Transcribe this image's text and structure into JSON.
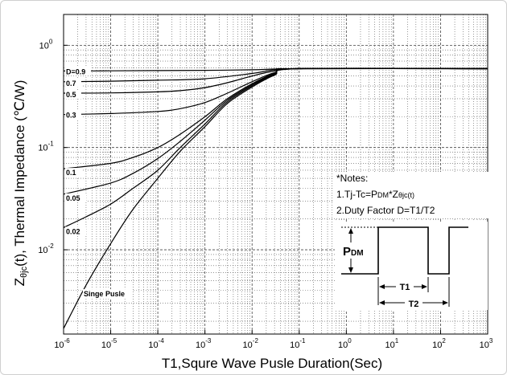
{
  "chart_data": {
    "type": "line",
    "xlabel": "T1,Squre Wave Pusle Duration(Sec)",
    "ylabel_parts": [
      "Z",
      "θjc",
      "(t), Thermal  Impedance (℃/W)"
    ],
    "x_scale": "log",
    "y_scale": "log",
    "xlim": [
      1e-06,
      1000
    ],
    "ylim": [
      0.0015,
      2
    ],
    "x_ticks": [
      {
        "v": 1e-06,
        "base": "10",
        "exp": "-6"
      },
      {
        "v": 1e-05,
        "base": "10",
        "exp": "-5"
      },
      {
        "v": 0.0001,
        "base": "10",
        "exp": "-4"
      },
      {
        "v": 0.001,
        "base": "10",
        "exp": "-3"
      },
      {
        "v": 0.01,
        "base": "10",
        "exp": "-2"
      },
      {
        "v": 0.1,
        "base": "10",
        "exp": "-1"
      },
      {
        "v": 1,
        "base": "10",
        "exp": "0"
      },
      {
        "v": 10,
        "base": "10",
        "exp": "1"
      },
      {
        "v": 100,
        "base": "10",
        "exp": "2"
      },
      {
        "v": 1000,
        "base": "10",
        "exp": "3"
      }
    ],
    "y_ticks": [
      {
        "v": 1,
        "base": "10",
        "exp": "0"
      },
      {
        "v": 0.1,
        "base": "10",
        "exp": "-1"
      },
      {
        "v": 0.01,
        "base": "10",
        "exp": "-2"
      }
    ],
    "grid": true,
    "series": [
      {
        "name": "D=0.9",
        "x": [
          1e-06,
          1e-05,
          0.0001,
          0.001,
          0.01,
          0.03,
          0.1,
          1000
        ],
        "y": [
          0.56,
          0.562,
          0.565,
          0.568,
          0.575,
          0.585,
          0.59,
          0.59
        ]
      },
      {
        "name": "0.7",
        "x": [
          1e-06,
          1e-05,
          0.0001,
          0.001,
          0.01,
          0.03,
          0.1,
          1000
        ],
        "y": [
          0.44,
          0.445,
          0.455,
          0.47,
          0.53,
          0.575,
          0.59,
          0.59
        ]
      },
      {
        "name": "0.5",
        "x": [
          1e-06,
          1e-05,
          0.0001,
          0.0003,
          0.001,
          0.003,
          0.01,
          0.03,
          0.1,
          1000
        ],
        "y": [
          0.34,
          0.342,
          0.35,
          0.36,
          0.385,
          0.43,
          0.5,
          0.56,
          0.59,
          0.59
        ]
      },
      {
        "name": "0.3",
        "x": [
          1e-06,
          1e-05,
          0.0001,
          0.0003,
          0.001,
          0.003,
          0.01,
          0.03,
          0.1,
          1000
        ],
        "y": [
          0.21,
          0.215,
          0.225,
          0.24,
          0.275,
          0.34,
          0.44,
          0.54,
          0.59,
          0.59
        ]
      },
      {
        "name": "0.1",
        "x": [
          1e-06,
          1e-05,
          3e-05,
          0.0001,
          0.0003,
          0.001,
          0.003,
          0.01,
          0.03,
          0.1,
          1000
        ],
        "y": [
          0.062,
          0.07,
          0.08,
          0.1,
          0.135,
          0.2,
          0.3,
          0.42,
          0.53,
          0.59,
          0.59
        ]
      },
      {
        "name": "0.05",
        "x": [
          1e-06,
          1e-05,
          3e-05,
          0.0001,
          0.0003,
          0.001,
          0.003,
          0.01,
          0.03,
          0.1,
          1000
        ],
        "y": [
          0.035,
          0.045,
          0.056,
          0.078,
          0.115,
          0.185,
          0.29,
          0.41,
          0.53,
          0.59,
          0.59
        ]
      },
      {
        "name": "0.02",
        "x": [
          1e-06,
          3e-06,
          1e-05,
          3e-05,
          0.0001,
          0.0003,
          0.001,
          0.003,
          0.01,
          0.03,
          0.1,
          1000
        ],
        "y": [
          0.0165,
          0.021,
          0.028,
          0.04,
          0.06,
          0.1,
          0.17,
          0.28,
          0.4,
          0.52,
          0.59,
          0.59
        ]
      },
      {
        "name": "Singe Pusle",
        "x": [
          1e-06,
          3e-06,
          1e-05,
          3e-05,
          0.0001,
          0.0003,
          0.001,
          0.003,
          0.01,
          0.03,
          0.1,
          1000
        ],
        "y": [
          0.0017,
          0.0045,
          0.0115,
          0.025,
          0.05,
          0.092,
          0.16,
          0.27,
          0.39,
          0.51,
          0.59,
          0.59
        ]
      }
    ],
    "notes": {
      "title": "*Notes:",
      "line1": {
        "a": "1.Tj-Tc=P",
        "b": "DM",
        "c": "*Z",
        "d": "θjc",
        "e": "(t)"
      },
      "line2": "2.Duty Factor D=T1/T2"
    },
    "inset": {
      "pdm_main": "P",
      "pdm_sub": "DM",
      "t1": "T1",
      "t2": "T2"
    }
  }
}
